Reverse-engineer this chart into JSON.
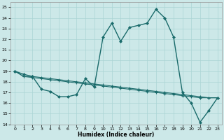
{
  "xlabel": "Humidex (Indice chaleur)",
  "ylabel": "",
  "xlim": [
    -0.5,
    23.5
  ],
  "ylim": [
    14,
    25.5
  ],
  "yticks": [
    14,
    15,
    16,
    17,
    18,
    19,
    20,
    21,
    22,
    23,
    24,
    25
  ],
  "xticks": [
    0,
    1,
    2,
    3,
    4,
    5,
    6,
    7,
    8,
    9,
    10,
    11,
    12,
    13,
    14,
    15,
    16,
    17,
    18,
    19,
    20,
    21,
    22,
    23
  ],
  "bg_color": "#cce8e8",
  "grid_color": "#aad4d4",
  "line_color": "#1a6b6b",
  "line1_x": [
    0,
    1,
    2,
    3,
    4,
    5,
    6,
    7,
    8,
    9,
    10,
    11,
    12,
    13,
    14,
    15,
    16,
    17,
    18,
    19,
    20,
    21,
    22,
    23
  ],
  "line1_y": [
    19.0,
    18.7,
    18.5,
    17.3,
    17.1,
    16.6,
    16.6,
    16.8,
    18.3,
    17.5,
    22.2,
    23.5,
    21.8,
    23.1,
    23.3,
    23.5,
    24.8,
    24.0,
    22.2,
    17.0,
    16.0,
    14.2,
    15.3,
    16.5
  ],
  "line2_x": [
    0,
    1,
    2,
    3,
    4,
    5,
    6,
    7,
    8,
    9,
    10,
    11,
    12,
    13,
    14,
    15,
    16,
    17,
    18,
    19,
    20,
    21,
    22,
    23
  ],
  "line2_y": [
    19.0,
    18.5,
    18.5,
    18.4,
    18.3,
    18.2,
    18.1,
    18.0,
    17.9,
    17.8,
    17.7,
    17.6,
    17.5,
    17.4,
    17.3,
    17.2,
    17.1,
    17.0,
    16.9,
    16.8,
    16.7,
    16.6,
    16.5,
    16.5
  ],
  "line3_x": [
    0,
    1,
    2,
    3,
    4,
    5,
    6,
    7,
    8,
    9,
    10,
    11,
    12,
    13,
    14,
    15,
    16,
    17,
    18,
    19,
    20,
    21,
    22,
    23
  ],
  "line3_y": [
    19.0,
    18.5,
    18.4,
    18.3,
    18.2,
    18.1,
    18.0,
    17.9,
    17.8,
    17.7,
    17.6,
    17.5,
    17.4,
    17.3,
    17.2,
    17.1,
    17.0,
    16.9,
    16.8,
    16.7,
    16.6,
    16.5,
    16.5,
    16.5
  ]
}
